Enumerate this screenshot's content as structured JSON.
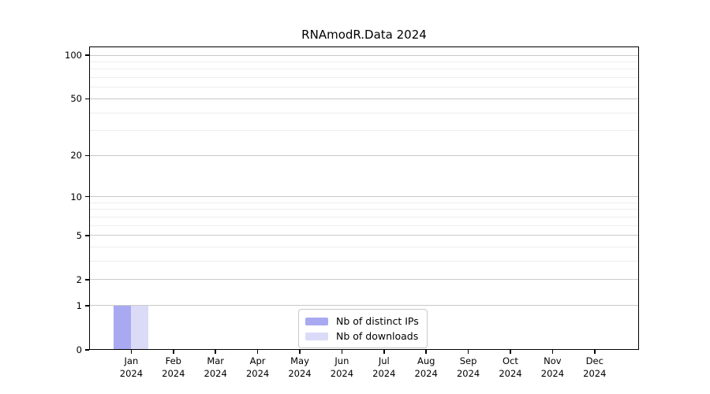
{
  "chart_data": {
    "type": "bar",
    "title": "RNAmodR.Data 2024",
    "year": "2024",
    "months": [
      "Jan",
      "Feb",
      "Mar",
      "Apr",
      "May",
      "Jun",
      "Jul",
      "Aug",
      "Sep",
      "Oct",
      "Nov",
      "Dec"
    ],
    "categories": [
      "Jan 2024",
      "Feb 2024",
      "Mar 2024",
      "Apr 2024",
      "May 2024",
      "Jun 2024",
      "Jul 2024",
      "Aug 2024",
      "Sep 2024",
      "Oct 2024",
      "Nov 2024",
      "Dec 2024"
    ],
    "series": [
      {
        "name": "Nb of distinct IPs",
        "color": "#a9a9f2",
        "values": [
          1,
          0,
          0,
          0,
          0,
          0,
          0,
          0,
          0,
          0,
          0,
          0
        ]
      },
      {
        "name": "Nb of downloads",
        "color": "#dbdbf8",
        "values": [
          1,
          0,
          0,
          0,
          0,
          0,
          0,
          0,
          0,
          0,
          0,
          0
        ]
      }
    ],
    "y_axis": {
      "scale": "log10(value+1)",
      "range": [
        0,
        100
      ],
      "major_ticks": [
        0,
        1,
        2,
        5,
        10,
        20,
        50,
        100
      ],
      "minor_gridlines": [
        3,
        4,
        6,
        7,
        8,
        9,
        30,
        40,
        60,
        70,
        80,
        90
      ]
    },
    "x_axis": {
      "year_label": "2024"
    },
    "legend": {
      "position": "inside-bottom-center"
    },
    "colors": {
      "major_grid": "#c9c9c9",
      "minor_grid": "#eeeeee",
      "axis": "#000000",
      "background": "#ffffff"
    },
    "grid": true
  }
}
